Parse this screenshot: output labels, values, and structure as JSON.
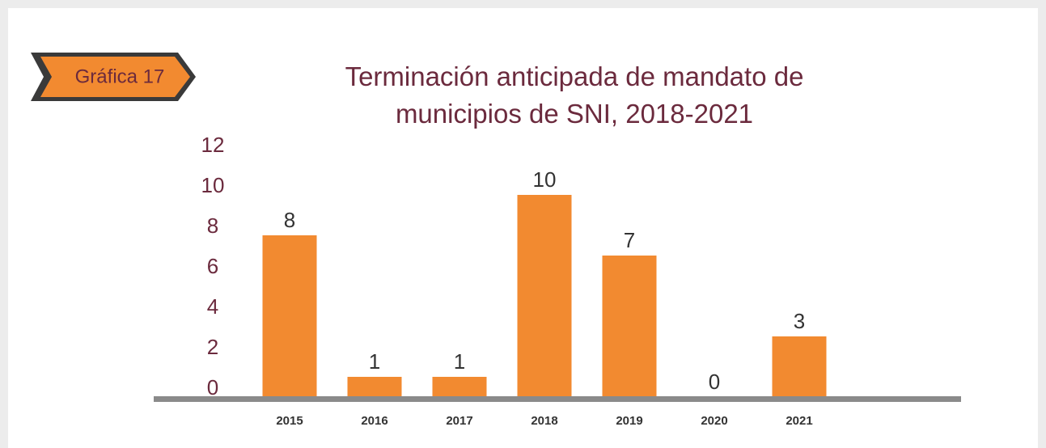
{
  "badge": "Gráfica 17",
  "chart_data": {
    "type": "bar",
    "title": "Terminación anticipada de mandato de municipios de SNI, 2018-2021",
    "categories": [
      "2015",
      "2016",
      "2017",
      "2018",
      "2019",
      "2020",
      "2021"
    ],
    "values": [
      8,
      1,
      1,
      10,
      7,
      0,
      3
    ],
    "color": "#f28a30",
    "ylim": [
      0,
      12
    ],
    "yticks": [
      0,
      2,
      4,
      6,
      8,
      10,
      12
    ],
    "grid": false
  }
}
